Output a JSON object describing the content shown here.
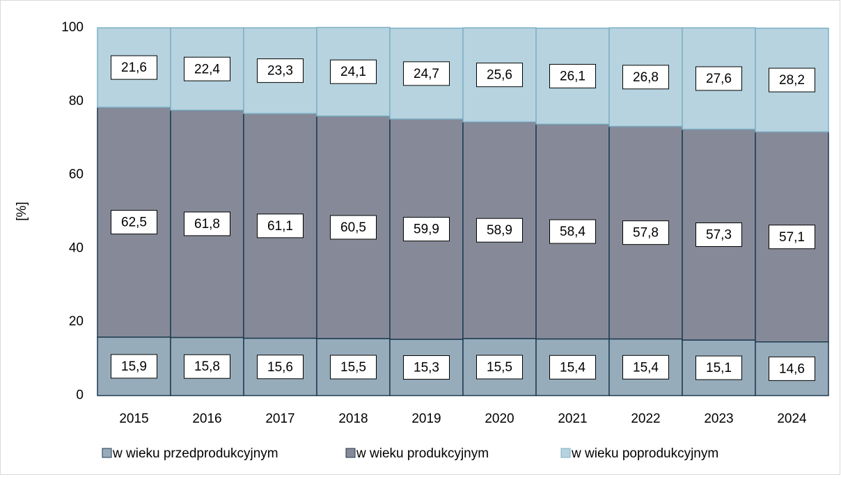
{
  "chart_data": {
    "type": "stacked_bar",
    "y_label": "[%]",
    "categories": [
      "2015",
      "2016",
      "2017",
      "2018",
      "2019",
      "2020",
      "2021",
      "2022",
      "2023",
      "2024"
    ],
    "series": [
      {
        "name": "w wieku przedprodukcyjnym",
        "color": "#97acbb",
        "values": [
          15.9,
          15.8,
          15.6,
          15.5,
          15.3,
          15.5,
          15.4,
          15.4,
          15.1,
          14.6
        ],
        "value_labels": [
          "15,9",
          "15,8",
          "15,6",
          "15,5",
          "15,3",
          "15,5",
          "15,4",
          "15,4",
          "15,1",
          "14,6"
        ]
      },
      {
        "name": "w wieku produkcyjnym",
        "color": "#868a98",
        "values": [
          62.5,
          61.8,
          61.1,
          60.5,
          59.9,
          58.9,
          58.4,
          57.8,
          57.3,
          57.1
        ],
        "value_labels": [
          "62,5",
          "61,8",
          "61,1",
          "60,5",
          "59,9",
          "58,9",
          "58,4",
          "57,8",
          "57,3",
          "57,1"
        ]
      },
      {
        "name": "w wieku poprodukcyjnym",
        "color": "#b6d3df",
        "values": [
          21.6,
          22.4,
          23.3,
          24.1,
          24.7,
          25.6,
          26.1,
          26.8,
          27.6,
          28.2
        ],
        "value_labels": [
          "21,6",
          "22,4",
          "23,3",
          "24,1",
          "24,7",
          "25,6",
          "26,1",
          "26,8",
          "27,6",
          "28,2"
        ]
      }
    ],
    "ylim": [
      0,
      100
    ],
    "yticks": [
      0,
      20,
      40,
      60,
      80,
      100
    ],
    "grid": false,
    "legend": "bottom"
  }
}
